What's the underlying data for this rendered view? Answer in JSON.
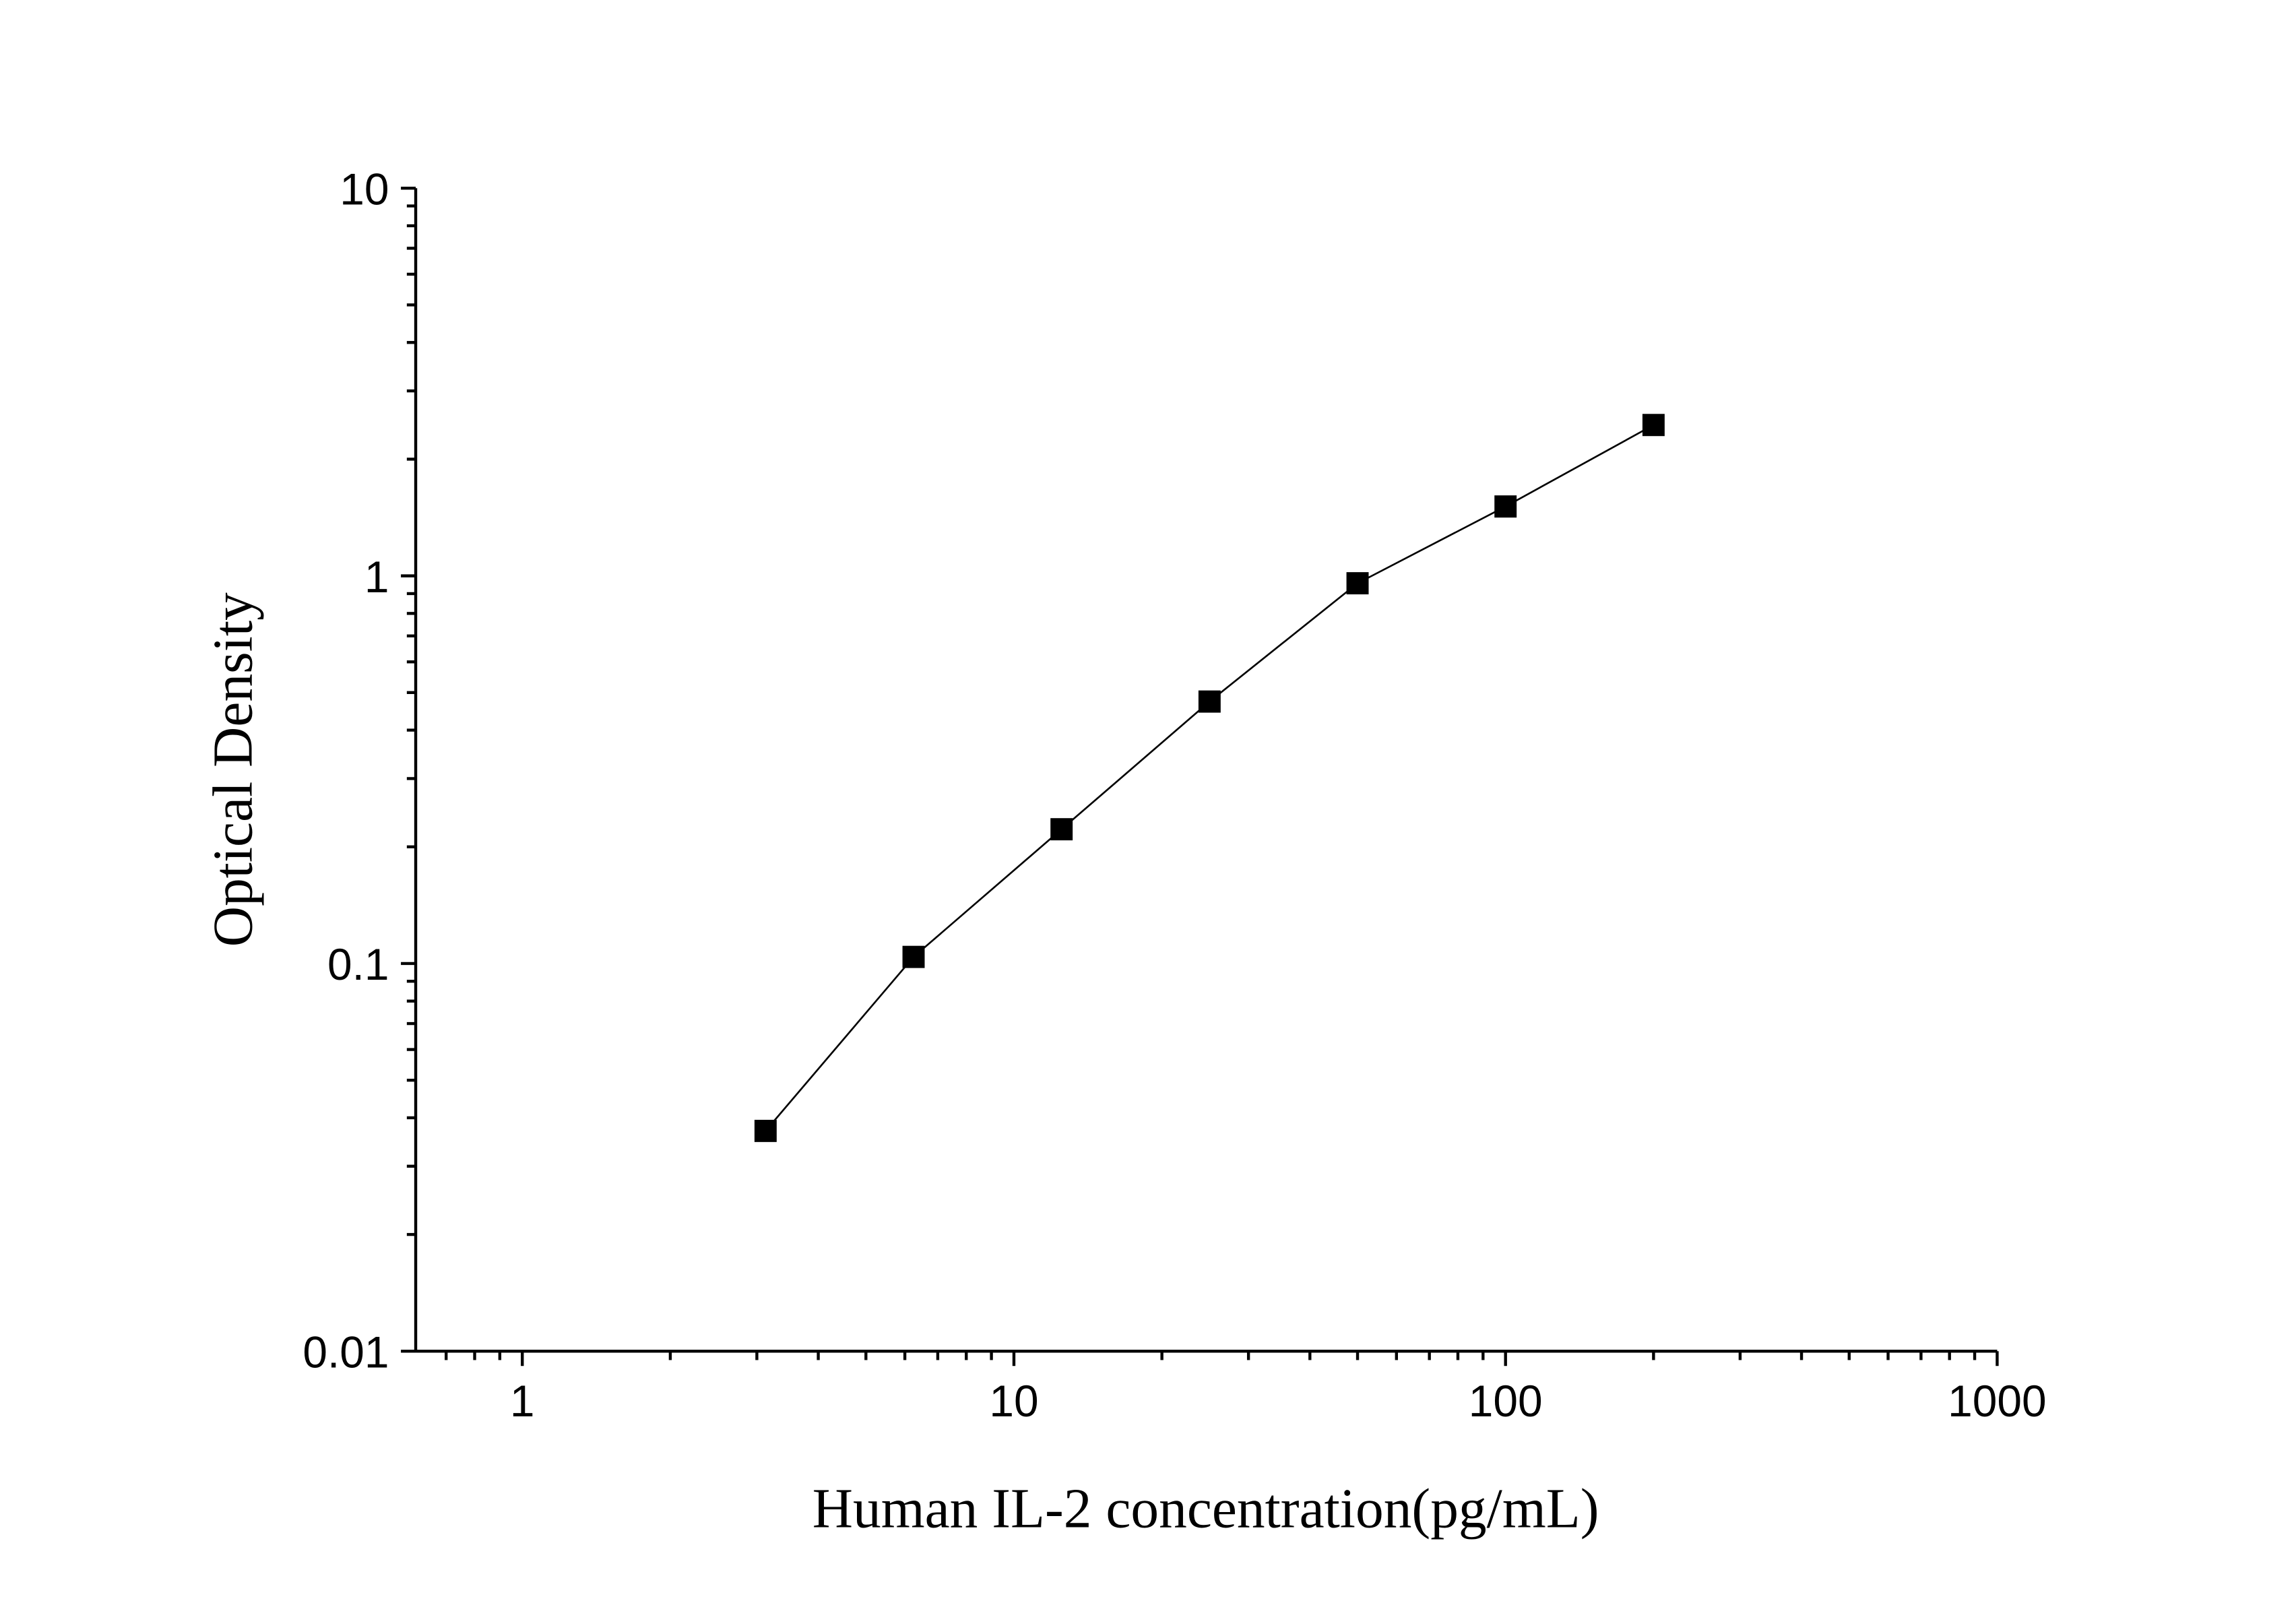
{
  "chart_data": {
    "type": "scatter",
    "title": "",
    "xlabel": "Human IL-2 concentration(pg/mL)",
    "ylabel": "Optical Density",
    "x_scale": "log",
    "y_scale": "log",
    "xlim": [
      0.607,
      1000
    ],
    "ylim": [
      0.01,
      10
    ],
    "x_ticks": [
      {
        "value": 1,
        "label": "1"
      },
      {
        "value": 10,
        "label": "10"
      },
      {
        "value": 100,
        "label": "100"
      },
      {
        "value": 1000,
        "label": "1000"
      }
    ],
    "y_ticks": [
      {
        "value": 0.01,
        "label": "0.01"
      },
      {
        "value": 0.1,
        "label": "0.1"
      },
      {
        "value": 1,
        "label": "1"
      },
      {
        "value": 10,
        "label": "10"
      }
    ],
    "grid": false,
    "marker": "square",
    "connect_line": true,
    "colors": {
      "marker": "#000000",
      "line": "#000000",
      "axis": "#000000"
    },
    "points": [
      {
        "x": 3.125,
        "y": 0.037
      },
      {
        "x": 6.25,
        "y": 0.104
      },
      {
        "x": 12.5,
        "y": 0.222
      },
      {
        "x": 25,
        "y": 0.474
      },
      {
        "x": 50,
        "y": 0.957
      },
      {
        "x": 100,
        "y": 1.51
      },
      {
        "x": 200,
        "y": 2.45
      }
    ]
  }
}
